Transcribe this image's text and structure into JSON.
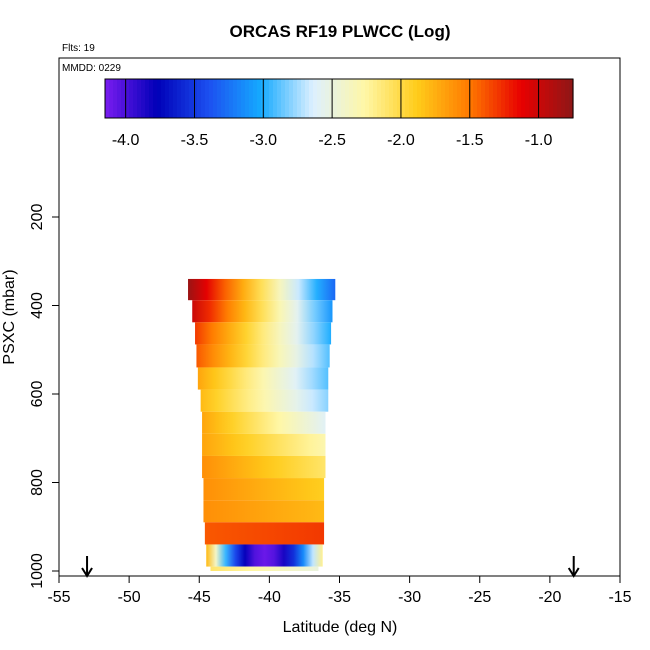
{
  "chart_data": {
    "type": "heatmap",
    "title": "ORCAS RF19 PLWCC (Log)",
    "corner_text": "Flts: 19",
    "inner_text": "MMDD: 0229",
    "xlabel": "Latitude (deg N)",
    "ylabel": "PSXC (mbar)",
    "xlim": [
      -55,
      -15
    ],
    "ylim": [
      1000,
      0
    ],
    "x_ticks": [
      -55,
      -50,
      -45,
      -40,
      -35,
      -30,
      -25,
      -20,
      -15
    ],
    "y_ticks": [
      200,
      400,
      600,
      800,
      1000
    ],
    "colorbar": {
      "range": [
        -4.15,
        -0.75
      ],
      "ticks": [
        -4.0,
        -3.5,
        -3.0,
        -2.5,
        -2.0,
        -1.5,
        -1.0
      ],
      "tick_labels": [
        "-4.0",
        "-3.5",
        "-3.0",
        "-2.5",
        "-2.0",
        "-1.5",
        "-1.0"
      ],
      "colors": [
        "#7a1cf0",
        "#0000b8",
        "#1c50f0",
        "#15aaff",
        "#ddf0ff",
        "#fff7a6",
        "#ffcc1a",
        "#ff7a00",
        "#e80000",
        "#8e1717"
      ]
    },
    "arrows_latitude": [
      -53,
      -18.3
    ],
    "layers": [
      {
        "p_top": 340,
        "p_bot": 388,
        "lat_min": -45.8,
        "lat_max": -35.3,
        "v_west": -0.8,
        "v_east": -3.3
      },
      {
        "p_top": 388,
        "p_bot": 438,
        "lat_min": -45.5,
        "lat_max": -35.5,
        "v_west": -1.0,
        "v_east": -3.1
      },
      {
        "p_top": 438,
        "p_bot": 488,
        "lat_min": -45.3,
        "lat_max": -35.6,
        "v_west": -1.3,
        "v_east": -3.0
      },
      {
        "p_top": 488,
        "p_bot": 540,
        "lat_min": -45.2,
        "lat_max": -35.7,
        "v_west": -1.4,
        "v_east": -2.9
      },
      {
        "p_top": 540,
        "p_bot": 590,
        "lat_min": -45.1,
        "lat_max": -35.8,
        "v_west": -1.7,
        "v_east": -2.9
      },
      {
        "p_top": 590,
        "p_bot": 640,
        "lat_min": -44.9,
        "lat_max": -35.8,
        "v_west": -1.8,
        "v_east": -2.8
      },
      {
        "p_top": 640,
        "p_bot": 690,
        "lat_min": -44.8,
        "lat_max": -36.0,
        "v_west": -1.7,
        "v_east": -2.6
      },
      {
        "p_top": 690,
        "p_bot": 740,
        "lat_min": -44.8,
        "lat_max": -36.0,
        "v_west": -1.7,
        "v_east": -2.3
      },
      {
        "p_top": 740,
        "p_bot": 790,
        "lat_min": -44.8,
        "lat_max": -36.0,
        "v_west": -1.6,
        "v_east": -2.1
      },
      {
        "p_top": 790,
        "p_bot": 840,
        "lat_min": -44.7,
        "lat_max": -36.1,
        "v_west": -1.6,
        "v_east": -1.9
      },
      {
        "p_top": 840,
        "p_bot": 890,
        "lat_min": -44.7,
        "lat_max": -36.1,
        "v_west": -1.6,
        "v_east": -1.8
      },
      {
        "p_top": 890,
        "p_bot": 940,
        "lat_min": -44.6,
        "lat_max": -36.1,
        "v_west": -1.4,
        "v_east": -1.3
      },
      {
        "p_top": 940,
        "p_bot": 990,
        "lat_min": -44.5,
        "lat_max": -36.2,
        "v_west": -1.8,
        "v_mid": -4.1,
        "v_east": -2.2
      },
      {
        "p_top": 990,
        "p_bot": 1000,
        "lat_min": -44.2,
        "lat_max": -36.5,
        "v_west": -2.1,
        "v_east": -2.5
      }
    ]
  }
}
